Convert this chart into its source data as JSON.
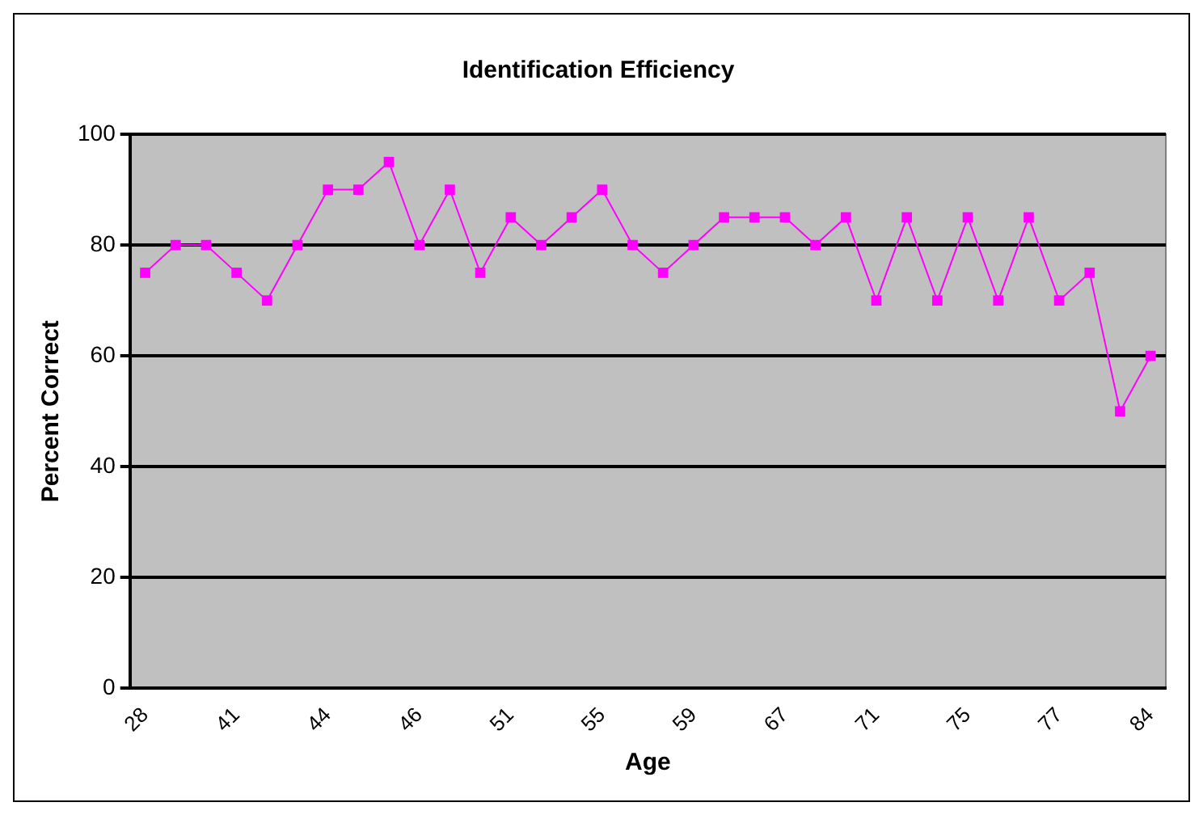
{
  "chart_data": {
    "type": "line",
    "title": "Identification Efficiency",
    "xlabel": "Age",
    "ylabel": "Percent Correct",
    "categories": [
      "28",
      null,
      null,
      "41",
      null,
      null,
      "44",
      null,
      null,
      "46",
      null,
      null,
      "51",
      null,
      null,
      "55",
      null,
      null,
      "59",
      null,
      null,
      "67",
      null,
      null,
      "71",
      null,
      null,
      "75",
      null,
      null,
      "77",
      null,
      null,
      "84"
    ],
    "series": [
      {
        "color": "#ff00ff",
        "values": [
          75,
          80,
          80,
          75,
          70,
          80,
          90,
          90,
          95,
          80,
          90,
          75,
          85,
          80,
          85,
          90,
          80,
          75,
          80,
          85,
          85,
          85,
          80,
          85,
          70,
          85,
          70,
          85,
          70,
          85,
          70,
          75,
          50,
          60
        ]
      }
    ],
    "ylim": [
      0,
      100
    ],
    "yticks": [
      0,
      20,
      40,
      60,
      80,
      100
    ],
    "grid": "y",
    "legend": false,
    "marker": "square",
    "line_style": "solid"
  }
}
